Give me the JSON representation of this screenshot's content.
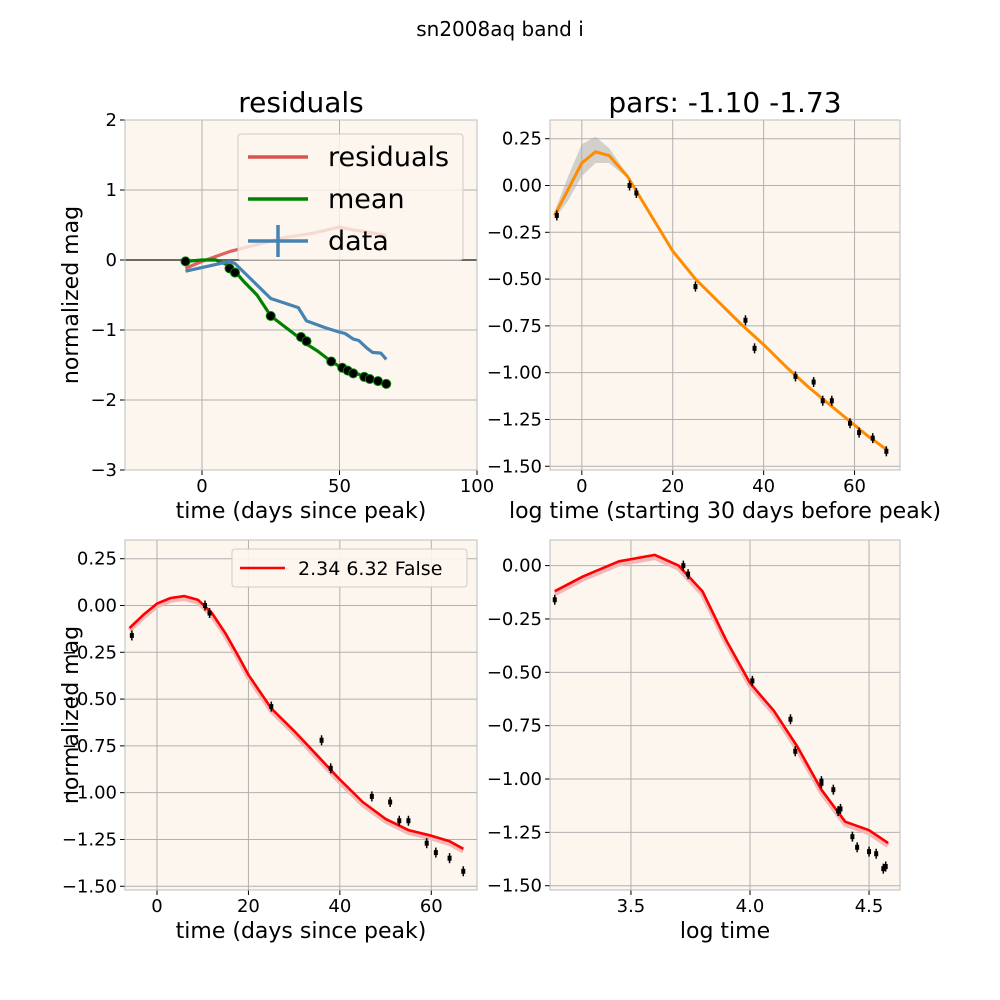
{
  "figure_title": "sn2008aq band i",
  "colors": {
    "panel_bg": "#fdf6ee",
    "grid": "#b0b0b0",
    "residuals": "#d9534f",
    "mean": "#008000",
    "data_line": "#4682b4",
    "gp": "#ff8c00",
    "band": "#b0b0b0",
    "fit": "#ff0000",
    "fit_shade": "#f4b6b6"
  },
  "chart_data": [
    {
      "id": "tl",
      "type": "line",
      "title": "residuals",
      "xlabel": "time (days since peak)",
      "ylabel": "normalized mag",
      "xlim": [
        -28,
        100
      ],
      "ylim": [
        -3,
        2
      ],
      "xticks": [
        0,
        50,
        100
      ],
      "yticks": [
        -3,
        -2,
        -1,
        0,
        1,
        2
      ],
      "xtick_labels": [
        "0",
        "50",
        "100"
      ],
      "ytick_labels": [
        "−3",
        "−2",
        "−1",
        "0",
        "1",
        "2"
      ],
      "grid": true,
      "legend": {
        "position": "top-right",
        "entries": [
          "residuals",
          "mean",
          "data"
        ]
      },
      "series": [
        {
          "name": "residuals",
          "x": [
            -6,
            0,
            10,
            20,
            30,
            40,
            50,
            55,
            60,
            67
          ],
          "y": [
            -0.12,
            -0.02,
            0.12,
            0.22,
            0.32,
            0.38,
            0.47,
            0.43,
            0.4,
            0.35
          ]
        },
        {
          "name": "mean",
          "x": [
            -6,
            0,
            5,
            10,
            12,
            15,
            20,
            25,
            30,
            35,
            38,
            42,
            47,
            50,
            53,
            55,
            58,
            60,
            62,
            65,
            67
          ],
          "y": [
            -0.02,
            0.0,
            0.0,
            -0.08,
            -0.16,
            -0.3,
            -0.5,
            -0.8,
            -0.95,
            -1.1,
            -1.2,
            -1.3,
            -1.45,
            -1.52,
            -1.57,
            -1.6,
            -1.65,
            -1.67,
            -1.7,
            -1.74,
            -1.77
          ]
        },
        {
          "name": "data",
          "x": [
            -6,
            10,
            12,
            25,
            35,
            38,
            45,
            50,
            52,
            55,
            57,
            60,
            62,
            65,
            67
          ],
          "y": [
            -0.16,
            -0.02,
            -0.05,
            -0.55,
            -0.68,
            -0.87,
            -0.97,
            -1.03,
            -1.05,
            -1.13,
            -1.15,
            -1.26,
            -1.32,
            -1.33,
            -1.42
          ]
        }
      ],
      "baseline": {
        "x": [
          -28,
          100
        ],
        "y": [
          0,
          0
        ]
      },
      "points": {
        "x": [
          -6,
          10,
          12,
          25,
          36,
          38,
          47,
          51,
          53,
          55,
          59,
          61,
          64,
          67
        ],
        "y": [
          -0.02,
          -0.12,
          -0.18,
          -0.8,
          -1.1,
          -1.16,
          -1.45,
          -1.54,
          -1.58,
          -1.62,
          -1.67,
          -1.7,
          -1.73,
          -1.77
        ]
      }
    },
    {
      "id": "tr",
      "type": "line",
      "title": "pars: -1.10 -1.73",
      "xlabel": "log time (starting 30 days before peak)",
      "ylabel": "",
      "xlim": [
        -7,
        70
      ],
      "ylim": [
        -1.52,
        0.35
      ],
      "xticks": [
        0,
        20,
        40,
        60
      ],
      "yticks": [
        -1.5,
        -1.25,
        -1.0,
        -0.75,
        -0.5,
        -0.25,
        0.0,
        0.25
      ],
      "xtick_labels": [
        "0",
        "20",
        "40",
        "60"
      ],
      "ytick_labels": [
        "−1.50",
        "−1.25",
        "−1.00",
        "−0.75",
        "−0.50",
        "−0.25",
        "0.00",
        "0.25"
      ],
      "grid": true,
      "series": [
        {
          "name": "",
          "x": [
            -6,
            -3,
            0,
            3,
            6,
            10,
            15,
            20,
            25,
            30,
            35,
            40,
            45,
            50,
            55,
            60,
            63,
            67
          ],
          "y": [
            -0.16,
            -0.02,
            0.12,
            0.18,
            0.16,
            0.05,
            -0.15,
            -0.35,
            -0.5,
            -0.62,
            -0.74,
            -0.85,
            -0.97,
            -1.08,
            -1.18,
            -1.28,
            -1.34,
            -1.41
          ]
        }
      ],
      "band": {
        "x": [
          -6,
          -3,
          0,
          3,
          6,
          10,
          15,
          20
        ],
        "upper": [
          -0.14,
          0.05,
          0.22,
          0.26,
          0.2,
          0.06,
          -0.14,
          -0.35
        ],
        "lower": [
          -0.18,
          -0.08,
          0.05,
          0.12,
          0.12,
          0.04,
          -0.16,
          -0.35
        ]
      },
      "points": {
        "x": [
          -5.5,
          10.5,
          12,
          25,
          36,
          38,
          47,
          51,
          53,
          55,
          59,
          61,
          64,
          67
        ],
        "y": [
          -0.16,
          0.0,
          -0.04,
          -0.54,
          -0.72,
          -0.87,
          -1.02,
          -1.05,
          -1.15,
          -1.15,
          -1.27,
          -1.32,
          -1.35,
          -1.42
        ]
      }
    },
    {
      "id": "bl",
      "type": "line",
      "title": "",
      "xlabel": "time (days since peak)",
      "ylabel": "normalized mag",
      "xlim": [
        -7,
        70
      ],
      "ylim": [
        -1.52,
        0.35
      ],
      "xticks": [
        0,
        20,
        40,
        60
      ],
      "yticks": [
        -1.5,
        -1.25,
        -1.0,
        -0.75,
        -0.5,
        -0.25,
        0.0,
        0.25
      ],
      "xtick_labels": [
        "0",
        "20",
        "40",
        "60"
      ],
      "ytick_labels": [
        "−1.50",
        "−1.25",
        "−1.00",
        "−0.75",
        "−0.50",
        "−0.25",
        "0.00",
        "0.25"
      ],
      "grid": true,
      "legend": {
        "position": "top-right",
        "entries": [
          "2.34 6.32 False"
        ]
      },
      "series": [
        {
          "name": "2.34 6.32 False",
          "x": [
            -6,
            -3,
            0,
            3,
            6,
            9,
            12,
            15,
            18,
            20,
            25,
            30,
            35,
            40,
            45,
            50,
            55,
            60,
            64,
            67
          ],
          "y": [
            -0.12,
            -0.05,
            0.01,
            0.04,
            0.05,
            0.03,
            -0.04,
            -0.15,
            -0.28,
            -0.37,
            -0.55,
            -0.67,
            -0.8,
            -0.93,
            -1.05,
            -1.14,
            -1.2,
            -1.23,
            -1.26,
            -1.3
          ]
        }
      ],
      "points": {
        "x": [
          -5.5,
          10.5,
          11.5,
          25,
          36,
          38,
          47,
          51,
          53,
          55,
          59,
          61,
          64,
          67
        ],
        "y": [
          -0.16,
          0.0,
          -0.04,
          -0.54,
          -0.72,
          -0.87,
          -1.02,
          -1.05,
          -1.15,
          -1.15,
          -1.27,
          -1.32,
          -1.35,
          -1.42
        ]
      }
    },
    {
      "id": "br",
      "type": "line",
      "title": "",
      "xlabel": "log time",
      "ylabel": "",
      "xlim": [
        3.16,
        4.63
      ],
      "ylim": [
        -1.52,
        0.12
      ],
      "xticks": [
        3.5,
        4.0,
        4.5
      ],
      "yticks": [
        -1.5,
        -1.25,
        -1.0,
        -0.75,
        -0.5,
        -0.25,
        0.0
      ],
      "xtick_labels": [
        "3.5",
        "4.0",
        "4.5"
      ],
      "ytick_labels": [
        "−1.50",
        "−1.25",
        "−1.00",
        "−0.75",
        "−0.50",
        "−0.25",
        "0.00"
      ],
      "grid": true,
      "series": [
        {
          "name": "",
          "x": [
            3.18,
            3.3,
            3.45,
            3.6,
            3.7,
            3.8,
            3.9,
            4.0,
            4.1,
            4.2,
            4.3,
            4.4,
            4.5,
            4.58
          ],
          "y": [
            -0.12,
            -0.05,
            0.02,
            0.05,
            0.0,
            -0.12,
            -0.35,
            -0.55,
            -0.68,
            -0.85,
            -1.05,
            -1.2,
            -1.24,
            -1.3
          ]
        }
      ],
      "points": {
        "x": [
          3.18,
          3.72,
          3.74,
          4.01,
          4.17,
          4.19,
          4.3,
          4.3,
          4.35,
          4.37,
          4.38,
          4.43,
          4.45,
          4.5,
          4.53,
          4.56,
          4.57
        ],
        "y": [
          -0.16,
          0.0,
          -0.04,
          -0.54,
          -0.72,
          -0.87,
          -1.02,
          -1.01,
          -1.05,
          -1.15,
          -1.14,
          -1.27,
          -1.32,
          -1.34,
          -1.35,
          -1.42,
          -1.41
        ]
      }
    }
  ]
}
